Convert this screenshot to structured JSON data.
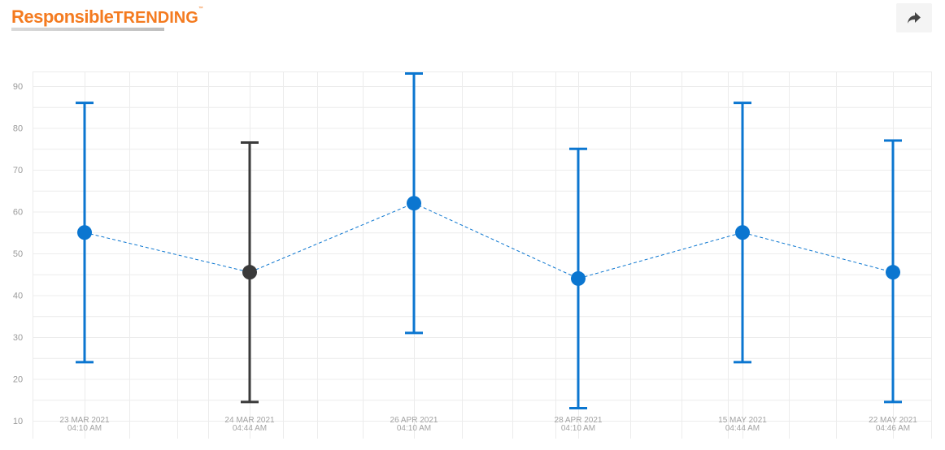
{
  "header": {
    "logo_part1": "Responsible",
    "logo_part2": "TRENDING",
    "logo_tm": "™",
    "share_icon": "share-arrow-icon"
  },
  "colors": {
    "series": "#0b76d0",
    "highlight": "#3a3a3a",
    "grid": "#ececec",
    "logo": "#f47b20"
  },
  "chart_data": {
    "type": "line",
    "title": "",
    "xlabel": "",
    "ylabel": "",
    "ylim": [
      10,
      92
    ],
    "yticks": [
      10,
      20,
      30,
      40,
      50,
      60,
      70,
      80,
      90
    ],
    "grid": true,
    "connector": "dashed",
    "categories": [
      [
        "23 MAR 2021",
        "04:10 AM"
      ],
      [
        "24 MAR 2021",
        "04:44 AM"
      ],
      [
        "26 APR 2021",
        "04:10 AM"
      ],
      [
        "28 APR 2021",
        "04:10 AM"
      ],
      [
        "15 MAY 2021",
        "04:44 AM"
      ],
      [
        "22 MAY 2021",
        "04:46 AM"
      ]
    ],
    "series": [
      {
        "values": [
          55,
          45.5,
          62,
          44,
          55,
          45.5
        ],
        "error_high": [
          86,
          76.5,
          93,
          75,
          86,
          77
        ],
        "error_low": [
          24,
          14.5,
          31,
          13,
          24,
          14.5
        ],
        "highlight_index": 1
      }
    ]
  }
}
